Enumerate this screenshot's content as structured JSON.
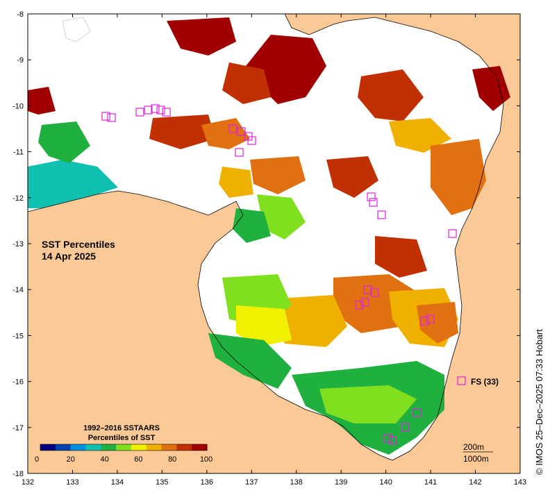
{
  "title": {
    "line1": "SST Percentiles",
    "line2": "14 Apr 2025"
  },
  "legend": {
    "line1": "1992–2016 SSTAARS",
    "line2": "Percentiles of SST",
    "ticks": [
      "0",
      "20",
      "40",
      "60",
      "80",
      "100"
    ],
    "colors": [
      "#000080",
      "#0040b0",
      "#0090e0",
      "#10c0b0",
      "#20b040",
      "#80e020",
      "#f0f000",
      "#f0b000",
      "#e07010",
      "#c03000",
      "#a00000"
    ]
  },
  "x_axis_ticks": [
    "132",
    "133",
    "134",
    "135",
    "136",
    "137",
    "138",
    "139",
    "140",
    "141",
    "142",
    "143"
  ],
  "y_axis_ticks": [
    "-8",
    "-9",
    "-10",
    "-11",
    "-12",
    "-13",
    "-14",
    "-15",
    "-16",
    "-17",
    "-18"
  ],
  "station_label": "FS (33)",
  "contours": {
    "line1": "200m",
    "line2": "1000m"
  },
  "credit": "© IMOS 25–Dec–2025 07:33 Hobart",
  "colors": {
    "land": "#fbc995",
    "station": "#e020e0",
    "no_data": "#ffffff"
  }
}
